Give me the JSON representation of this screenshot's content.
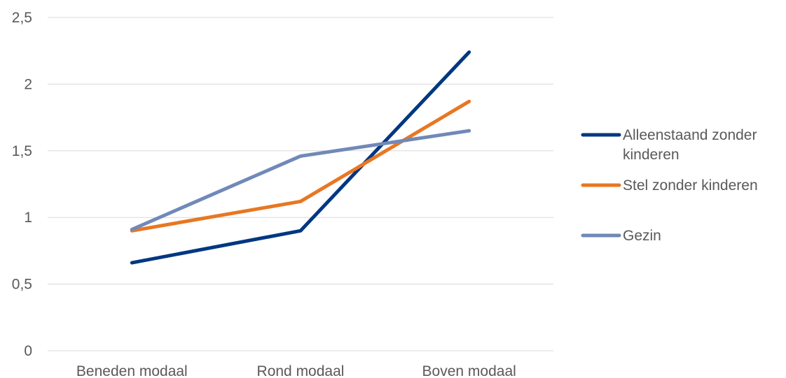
{
  "chart_data": {
    "type": "line",
    "title": "",
    "xlabel": "",
    "ylabel": "",
    "categories": [
      "Beneden modaal",
      "Rond modaal",
      "Boven modaal"
    ],
    "ylim": [
      0,
      2.5
    ],
    "yticks": [
      0,
      0.5,
      1,
      1.5,
      2,
      2.5
    ],
    "ytick_labels": [
      "0",
      "0,5",
      "1",
      "1,5",
      "2",
      "2,5"
    ],
    "grid": true,
    "legend_position": "right",
    "series": [
      {
        "name_lines": [
          "Alleenstaand zonder",
          "kinderen"
        ],
        "color": "#003781",
        "values": [
          0.66,
          0.9,
          2.24
        ]
      },
      {
        "name_lines": [
          "Stel zonder kinderen"
        ],
        "color": "#e87722",
        "values": [
          0.9,
          1.12,
          1.87
        ]
      },
      {
        "name_lines": [
          "Gezin"
        ],
        "color": "#7089b8",
        "values": [
          0.91,
          1.46,
          1.65
        ]
      }
    ]
  }
}
